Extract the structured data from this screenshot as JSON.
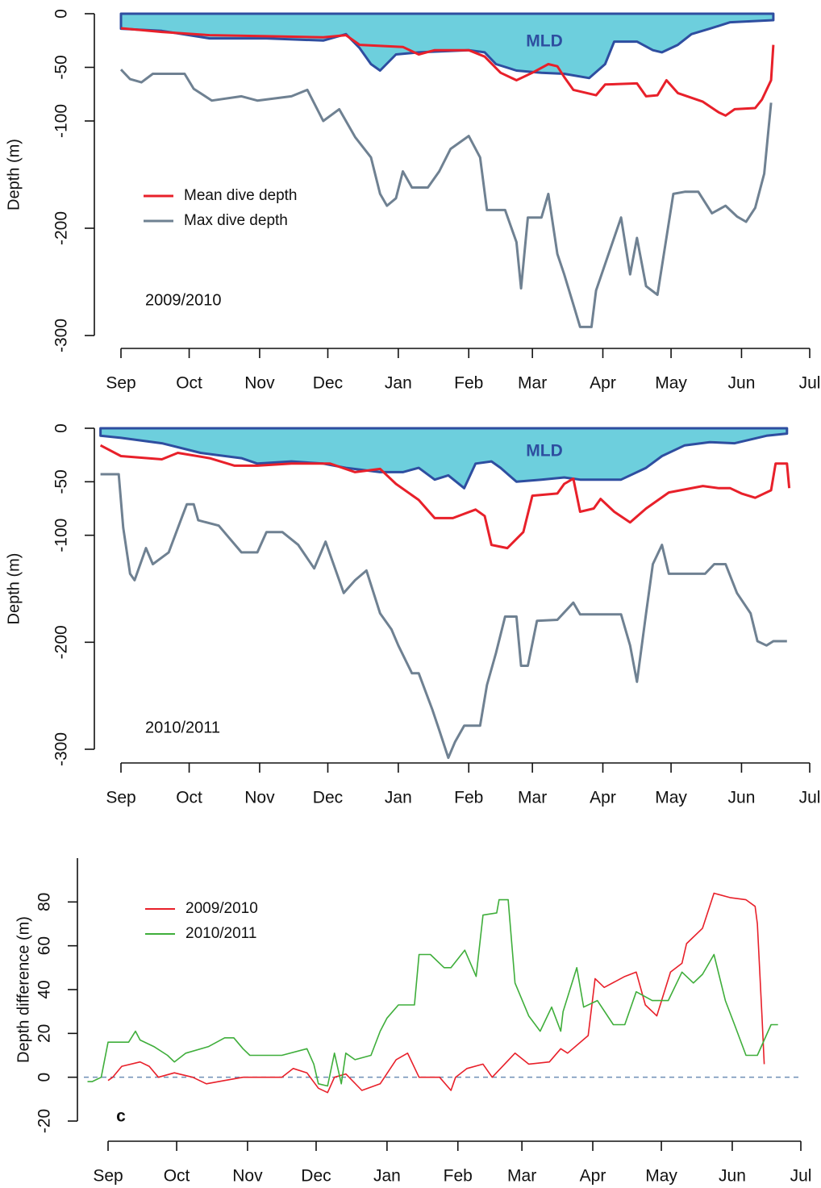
{
  "chart_data": [
    {
      "type": "line",
      "y_label": "Depth (m)",
      "annotation": "2009/2010",
      "legend": true,
      "xlim": [
        0,
        303
      ],
      "xticks": [
        {
          "value": 0,
          "label": "Sep"
        },
        {
          "value": 30,
          "label": "Oct"
        },
        {
          "value": 61,
          "label": "Nov"
        },
        {
          "value": 91,
          "label": "Dec"
        },
        {
          "value": 122,
          "label": "Jan"
        },
        {
          "value": 153,
          "label": "Feb"
        },
        {
          "value": 181,
          "label": "Mar"
        },
        {
          "value": 212,
          "label": "Apr"
        },
        {
          "value": 242,
          "label": "May"
        },
        {
          "value": 273,
          "label": "Jun"
        },
        {
          "value": 303,
          "label": "Jul"
        }
      ],
      "ylim": [
        -300,
        0
      ],
      "yticks": [
        0,
        -50,
        -100,
        -200,
        -300
      ],
      "series": [
        {
          "name": "MLD",
          "style": "area",
          "color": "#6dcfdd",
          "line_color": "#2e4ea0",
          "x": [
            0,
            18,
            39,
            64,
            89,
            99,
            105,
            110,
            114,
            121,
            131,
            153,
            160,
            165,
            174,
            185,
            195,
            206,
            213,
            217,
            227,
            234,
            238,
            245,
            251,
            259,
            268,
            287
          ],
          "values": [
            -14,
            -16,
            -23,
            -23,
            -25,
            -19,
            -32,
            -47,
            -53,
            -38,
            -36,
            -34,
            -36,
            -47,
            -53,
            -55,
            -56,
            -60,
            -47,
            -26,
            -26,
            -34,
            -36,
            -29,
            -19,
            -14,
            -8,
            -6
          ]
        },
        {
          "name": "Mean dive depth",
          "color": "#e8202a",
          "x": [
            0,
            18,
            39,
            64,
            89,
            99,
            105,
            124,
            131,
            138,
            153,
            160,
            167,
            174,
            181,
            188,
            192,
            195,
            199,
            209,
            213,
            227,
            231,
            236,
            240,
            245,
            256,
            263,
            266,
            270,
            279,
            282,
            286,
            287
          ],
          "values": [
            -13.5,
            -17,
            -20,
            -21,
            -22,
            -20,
            -29,
            -31,
            -38,
            -34,
            -34,
            -40,
            -55,
            -62,
            -55,
            -47,
            -49,
            -59,
            -71,
            -76,
            -66,
            -65,
            -77,
            -76,
            -62,
            -74,
            -82,
            -92,
            -95,
            -89,
            -88,
            -80,
            -62,
            -29
          ]
        },
        {
          "name": "Max dive depth",
          "color": "#6f8192",
          "x": [
            0,
            4,
            9,
            14,
            28,
            32,
            40,
            53,
            60,
            75,
            82,
            89,
            96,
            103,
            110,
            114,
            117,
            121,
            124,
            128,
            135,
            140,
            145,
            153,
            158,
            161,
            169,
            174,
            176,
            179,
            185,
            188,
            192,
            195,
            199,
            202,
            207,
            209,
            220,
            224,
            227,
            231,
            236,
            243,
            248,
            254,
            260,
            266,
            271,
            275,
            279,
            283,
            286
          ],
          "values": [
            -52,
            -61,
            -64,
            -56,
            -56,
            -70,
            -81,
            -77,
            -81,
            -77,
            -71,
            -100,
            -89,
            -115,
            -134,
            -168,
            -179,
            -172,
            -147,
            -162,
            -162,
            -147,
            -126,
            -114,
            -134,
            -183,
            -183,
            -213,
            -256,
            -190,
            -190,
            -168,
            -224,
            -243,
            -271,
            -292,
            -292,
            -258,
            -190,
            -243,
            -209,
            -254,
            -262,
            -168,
            -166,
            -166,
            -186,
            -179,
            -189,
            -194,
            -181,
            -149,
            -83
          ]
        }
      ]
    },
    {
      "type": "line",
      "y_label": "Depth (m)",
      "annotation": "2010/2011",
      "legend": false,
      "xlim": [
        0,
        303
      ],
      "xticks": [
        {
          "value": 0,
          "label": "Sep"
        },
        {
          "value": 30,
          "label": "Oct"
        },
        {
          "value": 61,
          "label": "Nov"
        },
        {
          "value": 91,
          "label": "Dec"
        },
        {
          "value": 122,
          "label": "Jan"
        },
        {
          "value": 153,
          "label": "Feb"
        },
        {
          "value": 181,
          "label": "Mar"
        },
        {
          "value": 212,
          "label": "Apr"
        },
        {
          "value": 242,
          "label": "May"
        },
        {
          "value": 273,
          "label": "Jun"
        },
        {
          "value": 303,
          "label": "Jul"
        }
      ],
      "ylim": [
        -300,
        0
      ],
      "yticks": [
        0,
        -50,
        -100,
        -200,
        -300
      ],
      "series": [
        {
          "name": "MLD",
          "style": "area",
          "color": "#6dcfdd",
          "line_color": "#2e4ea0",
          "x": [
            -9,
            0,
            18,
            35,
            53,
            60,
            75,
            89,
            99,
            114,
            124,
            131,
            138,
            144,
            151,
            156,
            163,
            167,
            174,
            185,
            195,
            202,
            220,
            231,
            238,
            248,
            259,
            270,
            284,
            293
          ],
          "values": [
            -7,
            -9,
            -14,
            -23,
            -28,
            -33,
            -31,
            -33,
            -37,
            -41,
            -41,
            -37,
            -48,
            -44,
            -56,
            -33,
            -31,
            -37,
            -50,
            -48,
            -46,
            -48,
            -48,
            -37,
            -26,
            -16,
            -13,
            -14,
            -7,
            -5
          ]
        },
        {
          "name": "Mean dive depth",
          "color": "#e8202a",
          "x": [
            -9,
            0,
            18,
            25,
            39,
            50,
            60,
            75,
            92,
            103,
            114,
            121,
            131,
            138,
            146,
            156,
            160,
            163,
            170,
            177,
            181,
            192,
            195,
            199,
            202,
            208,
            211,
            217,
            224,
            231,
            241,
            256,
            263,
            268,
            273,
            279,
            286,
            288,
            293,
            294
          ],
          "values": [
            -16,
            -26,
            -29,
            -23,
            -28,
            -35,
            -35,
            -33,
            -33,
            -41,
            -38,
            -52,
            -67,
            -84,
            -84,
            -76,
            -82,
            -109,
            -112,
            -97,
            -63,
            -61,
            -52,
            -47,
            -78,
            -75,
            -66,
            -78,
            -88,
            -75,
            -60,
            -54,
            -56,
            -56,
            -61,
            -65,
            -58,
            -33,
            -33,
            -56
          ]
        },
        {
          "name": "Max dive depth",
          "color": "#6f8192",
          "x": [
            -9,
            -1,
            1,
            4,
            6,
            11,
            14,
            21,
            27,
            29,
            32,
            34,
            43,
            53,
            60,
            64,
            71,
            78,
            85,
            90,
            98,
            103,
            108,
            114,
            119,
            122,
            128,
            131,
            137,
            140,
            144,
            147,
            151,
            158,
            161,
            165,
            169,
            174,
            176,
            179,
            183,
            192,
            199,
            202,
            220,
            224,
            227,
            231,
            234,
            238,
            241,
            257,
            261,
            266,
            271,
            277,
            280,
            284,
            287,
            293
          ],
          "values": [
            -43,
            -43,
            -93,
            -136,
            -142,
            -112,
            -127,
            -116,
            -82,
            -71,
            -71,
            -86,
            -91,
            -116,
            -116,
            -97,
            -97,
            -109,
            -131,
            -106,
            -154,
            -142,
            -133,
            -173,
            -188,
            -203,
            -229,
            -229,
            -263,
            -282,
            -308,
            -293,
            -278,
            -278,
            -240,
            -210,
            -176,
            -176,
            -222,
            -222,
            -180,
            -179,
            -163,
            -174,
            -174,
            -203,
            -237,
            -173,
            -127,
            -109,
            -136,
            -136,
            -127,
            -127,
            -154,
            -173,
            -199,
            -203,
            -199,
            -199
          ]
        }
      ]
    },
    {
      "type": "line",
      "y_label": "Depth difference (m)",
      "panel_label": "c",
      "legend": true,
      "reference_line": 0,
      "xlim": [
        0,
        303
      ],
      "xticks": [
        {
          "value": 0,
          "label": "Sep"
        },
        {
          "value": 30,
          "label": "Oct"
        },
        {
          "value": 61,
          "label": "Nov"
        },
        {
          "value": 91,
          "label": "Dec"
        },
        {
          "value": 122,
          "label": "Jan"
        },
        {
          "value": 153,
          "label": "Feb"
        },
        {
          "value": 181,
          "label": "Mar"
        },
        {
          "value": 212,
          "label": "Apr"
        },
        {
          "value": 242,
          "label": "May"
        },
        {
          "value": 273,
          "label": "Jun"
        },
        {
          "value": 303,
          "label": "Jul"
        }
      ],
      "ylim": [
        -20,
        100
      ],
      "yticks": [
        -20,
        0,
        20,
        40,
        60,
        80
      ],
      "series": [
        {
          "name": "2009/2010",
          "color": "#e8202a",
          "x": [
            0,
            2,
            6,
            14,
            18,
            22,
            29,
            37,
            43,
            51,
            59,
            76,
            81,
            87,
            92,
            96,
            99,
            104,
            111,
            119,
            126,
            131,
            136,
            145,
            150,
            152,
            157,
            164,
            168,
            178,
            184,
            193,
            198,
            201,
            210,
            213,
            217,
            226,
            231,
            235,
            240,
            246,
            251,
            253,
            260,
            265,
            272,
            279,
            283,
            284,
            286,
            287
          ],
          "values": [
            -1.5,
            0,
            5,
            7,
            5,
            0,
            2,
            0,
            -3,
            -1.5,
            0,
            0,
            4,
            2,
            -5,
            -7,
            0,
            1.5,
            -6,
            -3,
            8,
            11,
            0,
            0,
            -6,
            0,
            4,
            6,
            0,
            11,
            6,
            7,
            13,
            11,
            19,
            45,
            41,
            46,
            48,
            33,
            28,
            48,
            52,
            61,
            68,
            84,
            82,
            81,
            78,
            70,
            28,
            6
          ]
        },
        {
          "name": "2010/2011",
          "color": "#3fae3b",
          "x": [
            -9,
            -7,
            -3,
            0,
            9,
            12,
            14,
            20,
            26,
            29,
            34,
            44,
            51,
            55,
            59,
            62,
            76,
            87,
            90,
            92,
            96,
            99,
            102,
            104,
            108,
            115,
            119,
            122,
            127,
            134,
            136,
            141,
            147,
            150,
            156,
            161,
            164,
            170,
            171,
            175,
            178,
            184,
            189,
            194,
            198,
            199,
            205,
            208,
            214,
            221,
            226,
            231,
            238,
            245,
            251,
            256,
            260,
            265,
            270,
            274,
            279,
            284,
            290,
            293
          ],
          "values": [
            -2,
            -2,
            0,
            16,
            16,
            21,
            17,
            14,
            10,
            7,
            11,
            14,
            18,
            18,
            13,
            10,
            10,
            13,
            6,
            -3,
            -4,
            11,
            -3,
            11,
            8,
            10,
            21,
            27,
            33,
            33,
            56,
            56,
            50,
            50,
            58,
            46,
            74,
            75,
            81,
            81,
            43,
            28,
            21,
            32,
            21,
            30,
            50,
            32,
            35,
            24,
            24,
            39,
            35,
            35,
            48,
            43,
            47,
            56,
            35,
            24,
            10,
            10,
            24,
            24
          ]
        }
      ]
    }
  ]
}
